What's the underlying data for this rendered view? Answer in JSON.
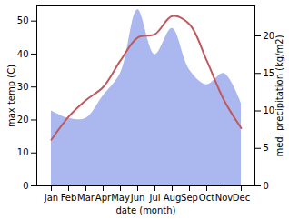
{
  "chart_data": {
    "type": "line",
    "categories": [
      "Jan",
      "Feb",
      "Mar",
      "Apr",
      "May",
      "Jun",
      "Jul",
      "Aug",
      "Sep",
      "Oct",
      "Nov",
      "Dec"
    ],
    "x_label": "date (month)",
    "y_label": "max temp (C)",
    "y2_label": "med. precipitation (kg/m2)",
    "series": [
      {
        "type": "area",
        "axis": "y2",
        "color": "#aab8ef",
        "values": [
          10,
          9,
          9,
          12,
          15,
          23.5,
          17.5,
          21,
          15.5,
          13.5,
          15,
          11
        ]
      },
      {
        "type": "line",
        "axis": "y",
        "color": "#c0585e",
        "values": [
          14,
          21,
          26,
          30,
          38,
          45,
          46,
          51.5,
          49,
          38,
          26,
          17.5
        ]
      }
    ],
    "ylim": [
      0,
      54.6
    ],
    "yticks": [
      0,
      10,
      20,
      30,
      40,
      50
    ],
    "y2lim": [
      0,
      24
    ],
    "y2ticks": [
      0,
      5,
      10,
      15,
      20
    ],
    "grid": false
  }
}
